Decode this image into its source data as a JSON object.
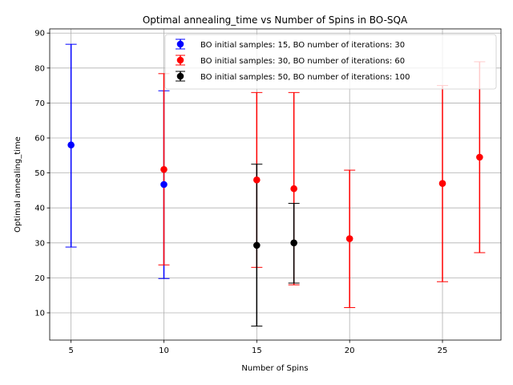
{
  "chart_data": {
    "type": "scatter",
    "title": "Optimal annealing_time vs Number of Spins in BO-SQA",
    "xlabel": "Number of Spins",
    "ylabel": "Optimal annealing_time",
    "xlim": [
      3.85,
      28.15
    ],
    "ylim": [
      2.2,
      91.2
    ],
    "xticks": [
      5,
      10,
      15,
      20,
      25
    ],
    "yticks": [
      10,
      20,
      30,
      40,
      50,
      60,
      70,
      80,
      90
    ],
    "grid": true,
    "legend_position": "top-right",
    "series": [
      {
        "name": "BO initial samples: 15, BO number of iterations: 30",
        "color": "#0000ff",
        "points": [
          {
            "x": 5,
            "y": 58.0,
            "low": 28.8,
            "high": 86.8
          },
          {
            "x": 10,
            "y": 46.7,
            "low": 19.8,
            "high": 73.5
          }
        ]
      },
      {
        "name": "BO initial samples: 30, BO number of iterations: 60",
        "color": "#ff0000",
        "points": [
          {
            "x": 10,
            "y": 51.0,
            "low": 23.7,
            "high": 78.4
          },
          {
            "x": 15,
            "y": 48.0,
            "low": 23.0,
            "high": 73.0
          },
          {
            "x": 17,
            "y": 45.5,
            "low": 18.0,
            "high": 73.0
          },
          {
            "x": 20,
            "y": 31.2,
            "low": 11.5,
            "high": 50.8
          },
          {
            "x": 25,
            "y": 47.0,
            "low": 18.9,
            "high": 75.0
          },
          {
            "x": 27,
            "y": 54.5,
            "low": 27.2,
            "high": 81.8
          }
        ]
      },
      {
        "name": "BO initial samples: 50, BO number of iterations: 100",
        "color": "#000000",
        "points": [
          {
            "x": 15,
            "y": 29.3,
            "low": 6.2,
            "high": 52.5
          },
          {
            "x": 17,
            "y": 30.0,
            "low": 18.5,
            "high": 41.3
          }
        ]
      }
    ]
  }
}
